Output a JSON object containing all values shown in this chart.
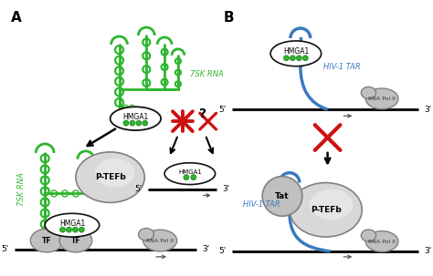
{
  "bg_color": "#ffffff",
  "green_color": "#2db52d",
  "gray_light": "#c0c0c0",
  "gray_dark": "#808080",
  "gray_mid": "#a0a0a0",
  "blue_color": "#3a7abf",
  "red_color": "#cc1111",
  "black_color": "#111111",
  "label_A": "A",
  "label_B": "B",
  "label_7SK": "7SK RNA",
  "label_HMGA1": "HMGA1",
  "label_PTEFb": "P-TEFb",
  "label_RNAPolII": "RNA Pol II",
  "label_TF": "TF",
  "label_HIV": "HIV-1 TAR",
  "label_Tat": "Tat",
  "label_5p": "5'",
  "label_3p": "3'"
}
